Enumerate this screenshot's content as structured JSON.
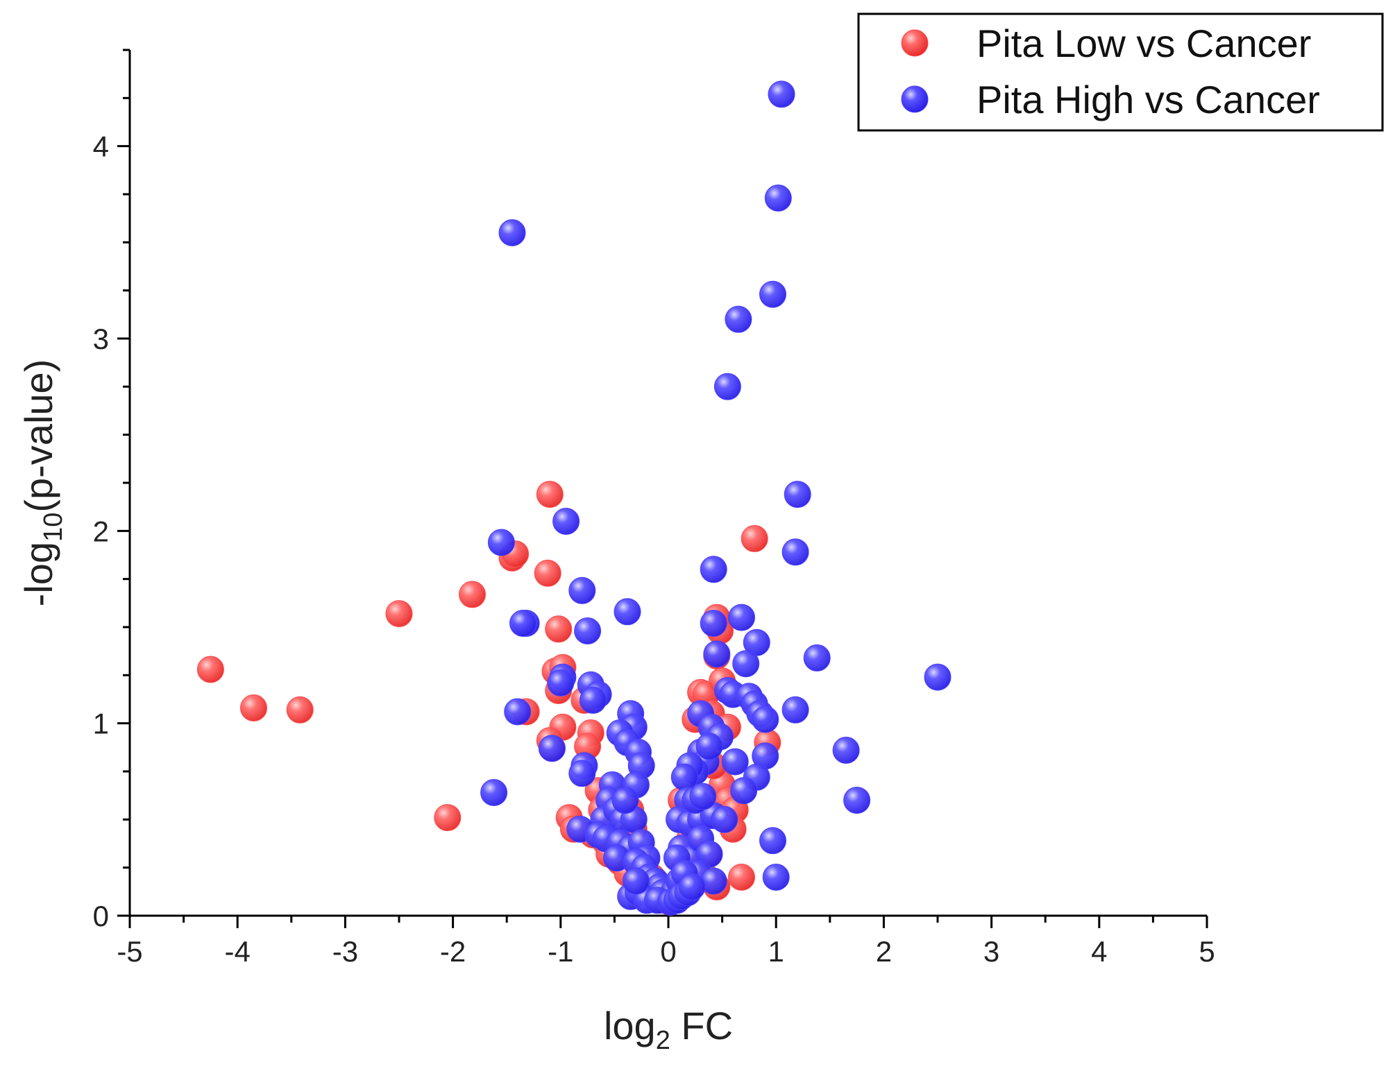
{
  "chart_data": {
    "type": "scatter",
    "title": "",
    "xlabel": "log2 FC",
    "ylabel": "-log10(p-value)",
    "xlabel_parts": {
      "base": "log",
      "sub": "2",
      "rest": " FC"
    },
    "ylabel_parts": {
      "base": "-log",
      "sub": "10",
      "rest": "(p-value)"
    },
    "xlim": [
      -5,
      5
    ],
    "ylim": [
      0,
      4.5
    ],
    "xticks": [
      -5,
      -4,
      -3,
      -2,
      -1,
      0,
      1,
      2,
      3,
      4,
      5
    ],
    "yticks": [
      0,
      1,
      2,
      3,
      4
    ],
    "xtick_labels": [
      "-5",
      "-4",
      "-3",
      "-2",
      "-1",
      "0",
      "1",
      "2",
      "3",
      "4",
      "5"
    ],
    "ytick_labels": [
      "0",
      "1",
      "2",
      "3",
      "4"
    ],
    "grid": false,
    "legend_position": "top-right",
    "series": [
      {
        "name": "Pita Low vs Cancer",
        "color": "#ff4d4d",
        "points": [
          [
            -4.25,
            1.28
          ],
          [
            -3.85,
            1.08
          ],
          [
            -3.42,
            1.07
          ],
          [
            -2.5,
            1.57
          ],
          [
            -2.05,
            0.51
          ],
          [
            -1.82,
            1.67
          ],
          [
            -1.45,
            1.86
          ],
          [
            -1.42,
            1.88
          ],
          [
            -1.32,
            1.06
          ],
          [
            -1.12,
            1.78
          ],
          [
            -1.1,
            2.19
          ],
          [
            -1.02,
            1.49
          ],
          [
            -1.05,
            1.27
          ],
          [
            -1.02,
            1.17
          ],
          [
            -0.98,
            1.29
          ],
          [
            -0.98,
            0.98
          ],
          [
            -1.1,
            0.91
          ],
          [
            -1.08,
            0.87
          ],
          [
            -0.92,
            0.51
          ],
          [
            -0.88,
            0.45
          ],
          [
            -0.78,
            1.12
          ],
          [
            -0.72,
            0.95
          ],
          [
            -0.75,
            0.88
          ],
          [
            -0.65,
            0.65
          ],
          [
            -0.62,
            0.55
          ],
          [
            -0.7,
            0.42
          ],
          [
            -0.58,
            0.38
          ],
          [
            -0.55,
            0.32
          ],
          [
            -0.45,
            0.28
          ],
          [
            -0.38,
            0.22
          ],
          [
            -0.35,
            0.55
          ],
          [
            -0.32,
            0.45
          ],
          [
            -0.28,
            0.3
          ],
          [
            -0.25,
            0.18
          ],
          [
            -0.2,
            0.12
          ],
          [
            -0.15,
            0.2
          ],
          [
            -0.1,
            0.1
          ],
          [
            -0.05,
            0.08
          ],
          [
            0.05,
            0.08
          ],
          [
            0.1,
            0.14
          ],
          [
            0.15,
            0.25
          ],
          [
            0.2,
            0.4
          ],
          [
            0.12,
            0.6
          ],
          [
            0.18,
            0.52
          ],
          [
            0.22,
            0.35
          ],
          [
            0.25,
            1.02
          ],
          [
            0.3,
            1.16
          ],
          [
            0.35,
            1.15
          ],
          [
            0.32,
            0.85
          ],
          [
            0.4,
            1.05
          ],
          [
            0.45,
            1.55
          ],
          [
            0.45,
            1.35
          ],
          [
            0.48,
            1.48
          ],
          [
            0.5,
            1.22
          ],
          [
            0.55,
            0.98
          ],
          [
            0.5,
            0.68
          ],
          [
            0.55,
            0.6
          ],
          [
            0.62,
            0.55
          ],
          [
            0.6,
            0.45
          ],
          [
            0.45,
            0.15
          ],
          [
            0.35,
            0.2
          ],
          [
            0.68,
            0.2
          ],
          [
            0.8,
            1.96
          ],
          [
            0.92,
            0.9
          ],
          [
            0.38,
            0.32
          ],
          [
            0.28,
            0.58
          ],
          [
            0.42,
            0.78
          ]
        ]
      },
      {
        "name": "Pita High vs Cancer",
        "color": "#4a42ff",
        "points": [
          [
            1.05,
            4.27
          ],
          [
            1.02,
            3.73
          ],
          [
            -1.45,
            3.55
          ],
          [
            0.97,
            3.23
          ],
          [
            0.65,
            3.1
          ],
          [
            0.55,
            2.75
          ],
          [
            1.2,
            2.19
          ],
          [
            -0.95,
            2.05
          ],
          [
            -1.55,
            1.94
          ],
          [
            1.18,
            1.89
          ],
          [
            0.42,
            1.8
          ],
          [
            -0.8,
            1.69
          ],
          [
            -0.38,
            1.58
          ],
          [
            -1.32,
            1.52
          ],
          [
            -1.35,
            1.52
          ],
          [
            -0.75,
            1.48
          ],
          [
            0.68,
            1.55
          ],
          [
            0.42,
            1.52
          ],
          [
            0.82,
            1.42
          ],
          [
            1.38,
            1.34
          ],
          [
            0.45,
            1.36
          ],
          [
            0.72,
            1.31
          ],
          [
            2.5,
            1.24
          ],
          [
            -0.98,
            1.24
          ],
          [
            -1.0,
            1.21
          ],
          [
            -0.72,
            1.2
          ],
          [
            -0.65,
            1.15
          ],
          [
            -0.7,
            1.12
          ],
          [
            0.55,
            1.17
          ],
          [
            0.6,
            1.15
          ],
          [
            0.75,
            1.14
          ],
          [
            0.8,
            1.1
          ],
          [
            0.85,
            1.05
          ],
          [
            1.18,
            1.07
          ],
          [
            0.9,
            1.02
          ],
          [
            -1.4,
            1.06
          ],
          [
            -0.35,
            1.05
          ],
          [
            -0.32,
            0.98
          ],
          [
            -0.45,
            0.95
          ],
          [
            -0.38,
            0.9
          ],
          [
            -0.28,
            0.85
          ],
          [
            -0.25,
            0.78
          ],
          [
            -1.08,
            0.87
          ],
          [
            0.3,
            1.05
          ],
          [
            0.4,
            0.98
          ],
          [
            0.48,
            0.93
          ],
          [
            0.3,
            0.85
          ],
          [
            0.35,
            0.8
          ],
          [
            0.25,
            0.75
          ],
          [
            0.38,
            0.88
          ],
          [
            1.65,
            0.86
          ],
          [
            0.9,
            0.83
          ],
          [
            0.62,
            0.8
          ],
          [
            0.82,
            0.72
          ],
          [
            -0.78,
            0.78
          ],
          [
            -0.8,
            0.74
          ],
          [
            0.2,
            0.78
          ],
          [
            0.15,
            0.72
          ],
          [
            -0.52,
            0.68
          ],
          [
            -0.3,
            0.68
          ],
          [
            0.7,
            0.65
          ],
          [
            0.18,
            0.6
          ],
          [
            1.75,
            0.6
          ],
          [
            -1.62,
            0.64
          ],
          [
            -0.55,
            0.6
          ],
          [
            -0.6,
            0.5
          ],
          [
            -0.48,
            0.55
          ],
          [
            -0.42,
            0.5
          ],
          [
            -0.32,
            0.5
          ],
          [
            0.1,
            0.5
          ],
          [
            0.2,
            0.48
          ],
          [
            0.3,
            0.5
          ],
          [
            0.42,
            0.52
          ],
          [
            0.52,
            0.5
          ],
          [
            -0.82,
            0.45
          ],
          [
            -0.65,
            0.42
          ],
          [
            -0.58,
            0.4
          ],
          [
            -0.45,
            0.38
          ],
          [
            -0.35,
            0.35
          ],
          [
            -0.25,
            0.38
          ],
          [
            -0.2,
            0.3
          ],
          [
            0.12,
            0.35
          ],
          [
            0.22,
            0.3
          ],
          [
            0.3,
            0.4
          ],
          [
            0.38,
            0.32
          ],
          [
            0.97,
            0.39
          ],
          [
            -0.48,
            0.3
          ],
          [
            -0.3,
            0.28
          ],
          [
            0.08,
            0.3
          ],
          [
            0.28,
            0.22
          ],
          [
            -0.22,
            0.25
          ],
          [
            -0.18,
            0.2
          ],
          [
            -0.12,
            0.18
          ],
          [
            -0.08,
            0.15
          ],
          [
            -0.05,
            0.12
          ],
          [
            0.05,
            0.12
          ],
          [
            0.1,
            0.18
          ],
          [
            0.15,
            0.22
          ],
          [
            0.42,
            0.18
          ],
          [
            1.0,
            0.2
          ],
          [
            -0.35,
            0.1
          ],
          [
            -0.28,
            0.12
          ],
          [
            -0.2,
            0.08
          ],
          [
            -0.1,
            0.08
          ],
          [
            0.02,
            0.07
          ],
          [
            0.08,
            0.08
          ],
          [
            0.12,
            0.1
          ],
          [
            0.18,
            0.12
          ],
          [
            0.22,
            0.15
          ],
          [
            -0.3,
            0.18
          ],
          [
            0.25,
            0.6
          ],
          [
            0.32,
            0.62
          ],
          [
            -0.4,
            0.6
          ]
        ]
      }
    ]
  }
}
